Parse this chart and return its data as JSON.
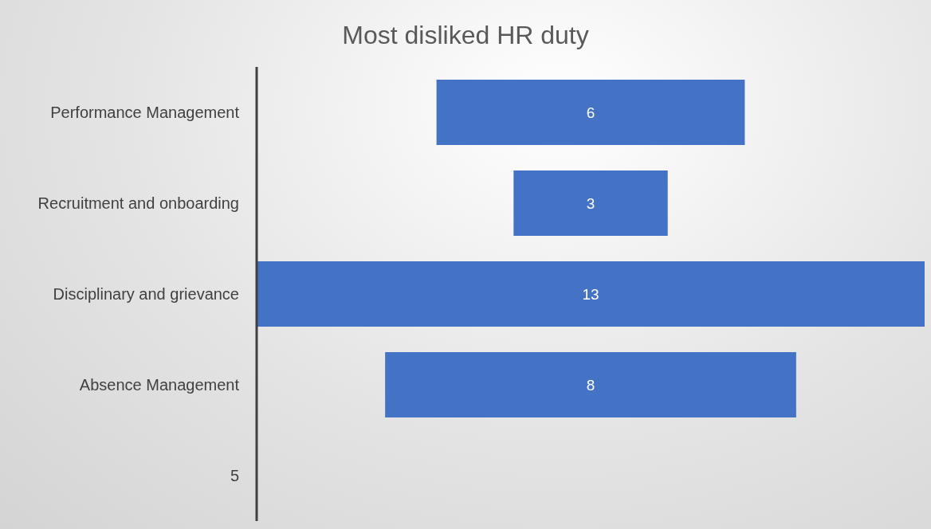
{
  "chart_data": {
    "type": "other",
    "title": "Most disliked HR duty",
    "categories": [
      "Performance Management",
      "Recruitment and onboarding",
      "Disciplinary and grievance",
      "Absence Management",
      "5"
    ],
    "values": [
      6,
      3,
      13,
      8,
      null
    ],
    "color": "#4472c4",
    "data_labels": true
  }
}
